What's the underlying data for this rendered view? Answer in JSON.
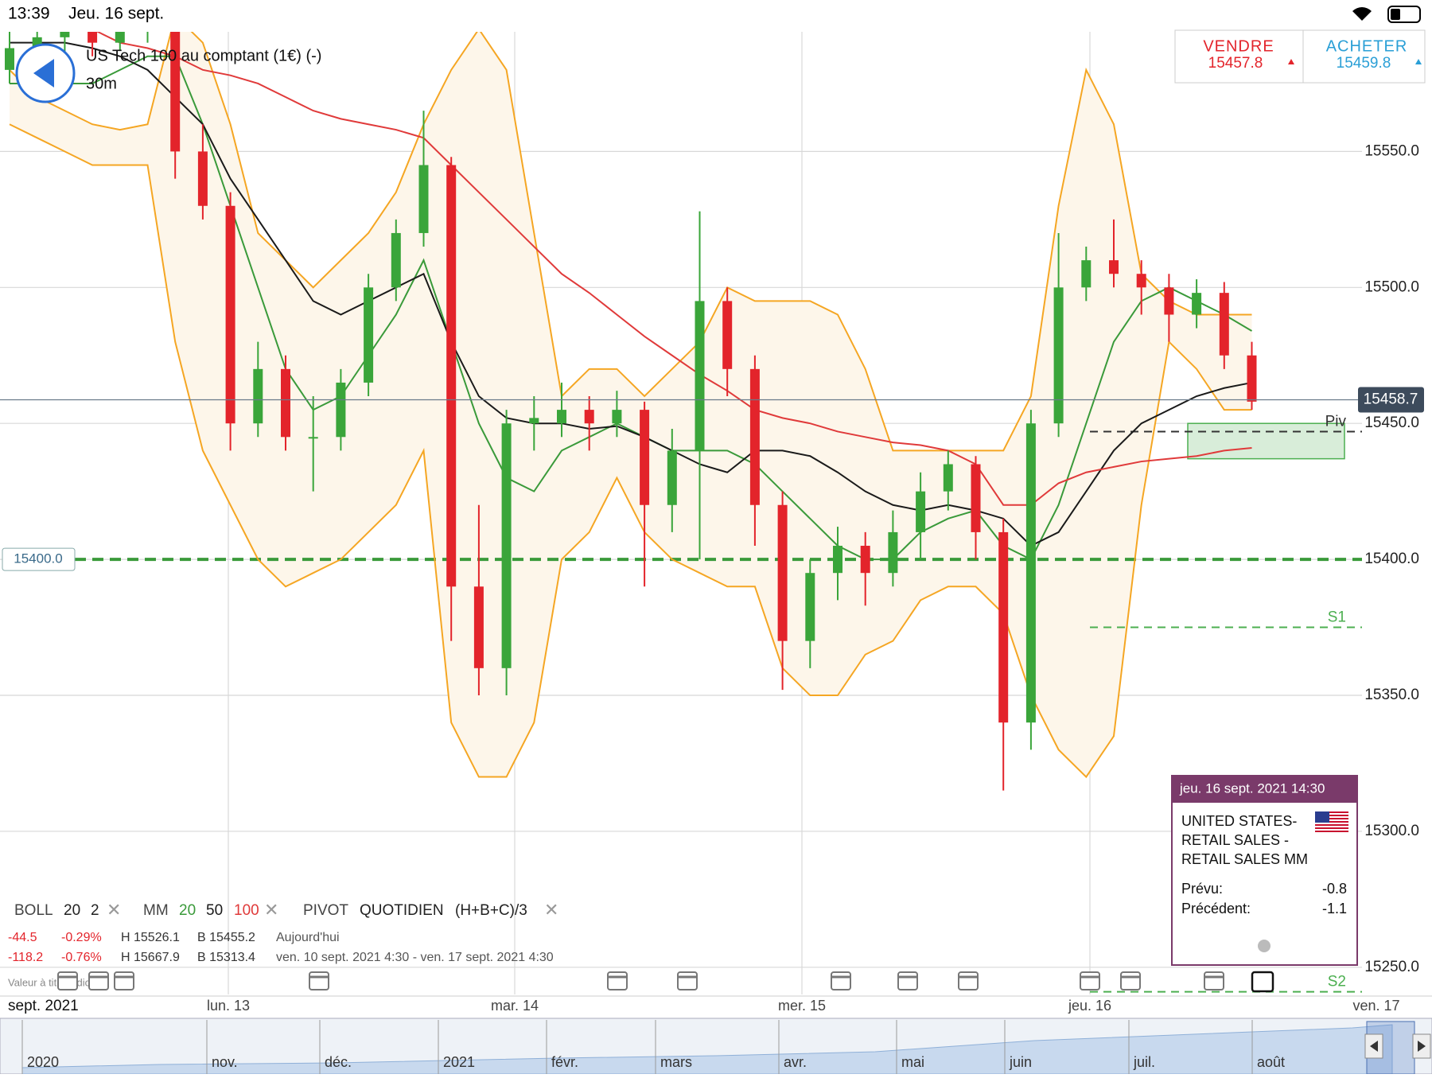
{
  "status_bar": {
    "time": "13:39",
    "date": "Jeu. 16 sept."
  },
  "instrument": {
    "name": "US Tech 100 au comptant (1€) (-)",
    "timeframe": "30m"
  },
  "sell": {
    "label": "VENDRE",
    "price": 15457.8
  },
  "buy": {
    "label": "ACHETER",
    "price": 15459.8
  },
  "chart_data": {
    "type": "candlestick",
    "up_color": "#3aa53a",
    "down_color": "#e3242b",
    "ylim": [
      15240,
      15594
    ],
    "yticks": [
      {
        "value": 15250,
        "label": "15250.0"
      },
      {
        "value": 15300,
        "label": "15300.0"
      },
      {
        "value": 15350,
        "label": "15350.0"
      },
      {
        "value": 15400,
        "label": "15400.0"
      },
      {
        "value": 15450,
        "label": "15450.0"
      },
      {
        "value": 15500,
        "label": "15500.0"
      },
      {
        "value": 15550,
        "label": "15550.0"
      }
    ],
    "grid": true,
    "candles": [
      [
        15580,
        15595,
        15575,
        15588
      ],
      [
        15588,
        15598,
        15583,
        15592
      ],
      [
        15592,
        15600,
        15586,
        15595
      ],
      [
        15595,
        15599,
        15585,
        15590
      ],
      [
        15590,
        15601,
        15587,
        15596
      ],
      [
        15596,
        15605,
        15590,
        15598
      ],
      [
        15598,
        15600,
        15540,
        15550
      ],
      [
        15550,
        15560,
        15525,
        15530
      ],
      [
        15530,
        15535,
        15440,
        15450
      ],
      [
        15450,
        15480,
        15445,
        15470
      ],
      [
        15470,
        15475,
        15440,
        15445
      ],
      [
        15445,
        15460,
        15425,
        15445
      ],
      [
        15445,
        15470,
        15440,
        15465
      ],
      [
        15465,
        15505,
        15460,
        15500
      ],
      [
        15500,
        15525,
        15495,
        15520
      ],
      [
        15520,
        15565,
        15515,
        15545
      ],
      [
        15545,
        15548,
        15370,
        15390
      ],
      [
        15390,
        15420,
        15350,
        15360
      ],
      [
        15360,
        15455,
        15350,
        15450
      ],
      [
        15450,
        15460,
        15440,
        15452
      ],
      [
        15450,
        15465,
        15445,
        15455
      ],
      [
        15455,
        15460,
        15440,
        15450
      ],
      [
        15450,
        15462,
        15445,
        15455
      ],
      [
        15455,
        15458,
        15390,
        15420
      ],
      [
        15420,
        15448,
        15410,
        15440
      ],
      [
        15440,
        15528,
        15400,
        15495
      ],
      [
        15495,
        15500,
        15460,
        15470
      ],
      [
        15470,
        15475,
        15405,
        15420
      ],
      [
        15420,
        15425,
        15352,
        15370
      ],
      [
        15370,
        15400,
        15360,
        15395
      ],
      [
        15395,
        15412,
        15385,
        15405
      ],
      [
        15405,
        15410,
        15383,
        15395
      ],
      [
        15395,
        15418,
        15390,
        15410
      ],
      [
        15410,
        15432,
        15400,
        15425
      ],
      [
        15425,
        15440,
        15418,
        15435
      ],
      [
        15435,
        15438,
        15400,
        15410
      ],
      [
        15410,
        15415,
        15315,
        15340
      ],
      [
        15340,
        15455,
        15330,
        15450
      ],
      [
        15450,
        15520,
        15445,
        15500
      ],
      [
        15500,
        15515,
        15495,
        15510
      ],
      [
        15510,
        15525,
        15500,
        15505
      ],
      [
        15505,
        15510,
        15490,
        15500
      ],
      [
        15500,
        15505,
        15480,
        15490
      ],
      [
        15490,
        15503,
        15485,
        15498
      ],
      [
        15498,
        15502,
        15470,
        15475
      ],
      [
        15475,
        15480,
        15455,
        15458
      ]
    ],
    "bands": {
      "color": "#f5a623",
      "fill": "#fdf6ea",
      "upper": [
        15580,
        15570,
        15565,
        15560,
        15558,
        15560,
        15600,
        15590,
        15560,
        15520,
        15510,
        15500,
        15510,
        15520,
        15535,
        15560,
        15580,
        15595,
        15580,
        15520,
        15460,
        15470,
        15470,
        15460,
        15470,
        15480,
        15500,
        15495,
        15495,
        15495,
        15490,
        15470,
        15440,
        15440,
        15440,
        15440,
        15440,
        15460,
        15530,
        15580,
        15560,
        15505,
        15495,
        15490,
        15490,
        15490
      ],
      "lower": [
        15560,
        15555,
        15550,
        15545,
        15545,
        15545,
        15480,
        15440,
        15420,
        15400,
        15390,
        15395,
        15400,
        15410,
        15420,
        15440,
        15340,
        15320,
        15320,
        15340,
        15400,
        15410,
        15430,
        15410,
        15400,
        15395,
        15390,
        15390,
        15360,
        15350,
        15350,
        15365,
        15370,
        15385,
        15390,
        15390,
        15380,
        15350,
        15330,
        15320,
        15335,
        15420,
        15480,
        15470,
        15455,
        15455
      ]
    },
    "series": [
      {
        "name": "20",
        "color": "#3a9a3a",
        "values": [
          15575,
          15575,
          15575,
          15575,
          15580,
          15585,
          15585,
          15560,
          15530,
          15500,
          15470,
          15455,
          15460,
          15475,
          15490,
          15510,
          15480,
          15450,
          15430,
          15425,
          15440,
          15445,
          15450,
          15445,
          15440,
          15440,
          15440,
          15435,
          15425,
          15415,
          15405,
          15400,
          15400,
          15410,
          15415,
          15418,
          15405,
          15400,
          15420,
          15450,
          15480,
          15495,
          15500,
          15495,
          15490,
          15484
        ]
      },
      {
        "name": "50",
        "color": "#1a1a1a",
        "values": [
          15590,
          15590,
          15590,
          15588,
          15585,
          15580,
          15570,
          15560,
          15540,
          15525,
          15510,
          15495,
          15490,
          15495,
          15500,
          15505,
          15480,
          15460,
          15452,
          15450,
          15450,
          15448,
          15449,
          15445,
          15440,
          15435,
          15432,
          15440,
          15440,
          15438,
          15432,
          15425,
          15420,
          15418,
          15420,
          15418,
          15415,
          15405,
          15410,
          15425,
          15440,
          15450,
          15455,
          15460,
          15463,
          15465
        ]
      },
      {
        "name": "100",
        "color": "#e03a3a",
        "values": [
          15610,
          15605,
          15600,
          15595,
          15590,
          15588,
          15585,
          15580,
          15578,
          15575,
          15570,
          15565,
          15562,
          15560,
          15558,
          15555,
          15545,
          15535,
          15525,
          15515,
          15505,
          15498,
          15490,
          15482,
          15475,
          15468,
          15462,
          15455,
          15452,
          15450,
          15447,
          15445,
          15443,
          15442,
          15440,
          15435,
          15420,
          15420,
          15428,
          15432,
          15434,
          15436,
          15437,
          15438,
          15440,
          15441
        ]
      }
    ],
    "pivots": [
      {
        "name": "Piv",
        "value": 15447,
        "color": "#333333"
      },
      {
        "name": "S1",
        "value": 15375,
        "color": "#4caf50"
      },
      {
        "name": "S2",
        "value": 15241,
        "color": "#4caf50"
      }
    ],
    "zone": [
      15437,
      15450
    ],
    "level": {
      "value": 15400,
      "label": "15400.0"
    },
    "last_price": 15458.7
  },
  "indicators": {
    "boll": {
      "label": "BOLL",
      "period": 20,
      "dev": 2
    },
    "mm": {
      "label": "MM",
      "periods": [
        20,
        50,
        100
      ]
    },
    "pivot": {
      "label": "PIVOT",
      "mode": "QUOTIDIEN",
      "formula": "(H+B+C)/3"
    }
  },
  "stats": [
    {
      "change": "-44.5",
      "pct": "-0.29%",
      "high": "H 15526.1",
      "low": "B 15455.2",
      "period": "Aujourd'hui"
    },
    {
      "change": "-118.2",
      "pct": "-0.76%",
      "high": "H 15667.9",
      "low": "B 15313.4",
      "period": "ven. 10 sept. 2021 4:30 - ven. 17 sept. 2021 4:30"
    }
  ],
  "disclaimer": "Valeur à titre indicatif",
  "time_axis": {
    "period": "sept. 2021",
    "days": [
      "lun. 13",
      "mar. 14",
      "mer. 15",
      "jeu. 16",
      "ven. 17"
    ]
  },
  "navigator": {
    "months": [
      "2020",
      "nov.",
      "déc.",
      "2021",
      "févr.",
      "mars",
      "avr.",
      "mai",
      "juin",
      "juil.",
      "août"
    ]
  },
  "event": {
    "datetime": "jeu. 16 sept. 2021 14:30",
    "title_lines": [
      "UNITED STATES-",
      "RETAIL SALES -",
      "RETAIL SALES MM"
    ],
    "forecast_label": "Prévu:",
    "forecast": -0.8,
    "previous_label": "Précédent:",
    "previous": -1.1
  }
}
